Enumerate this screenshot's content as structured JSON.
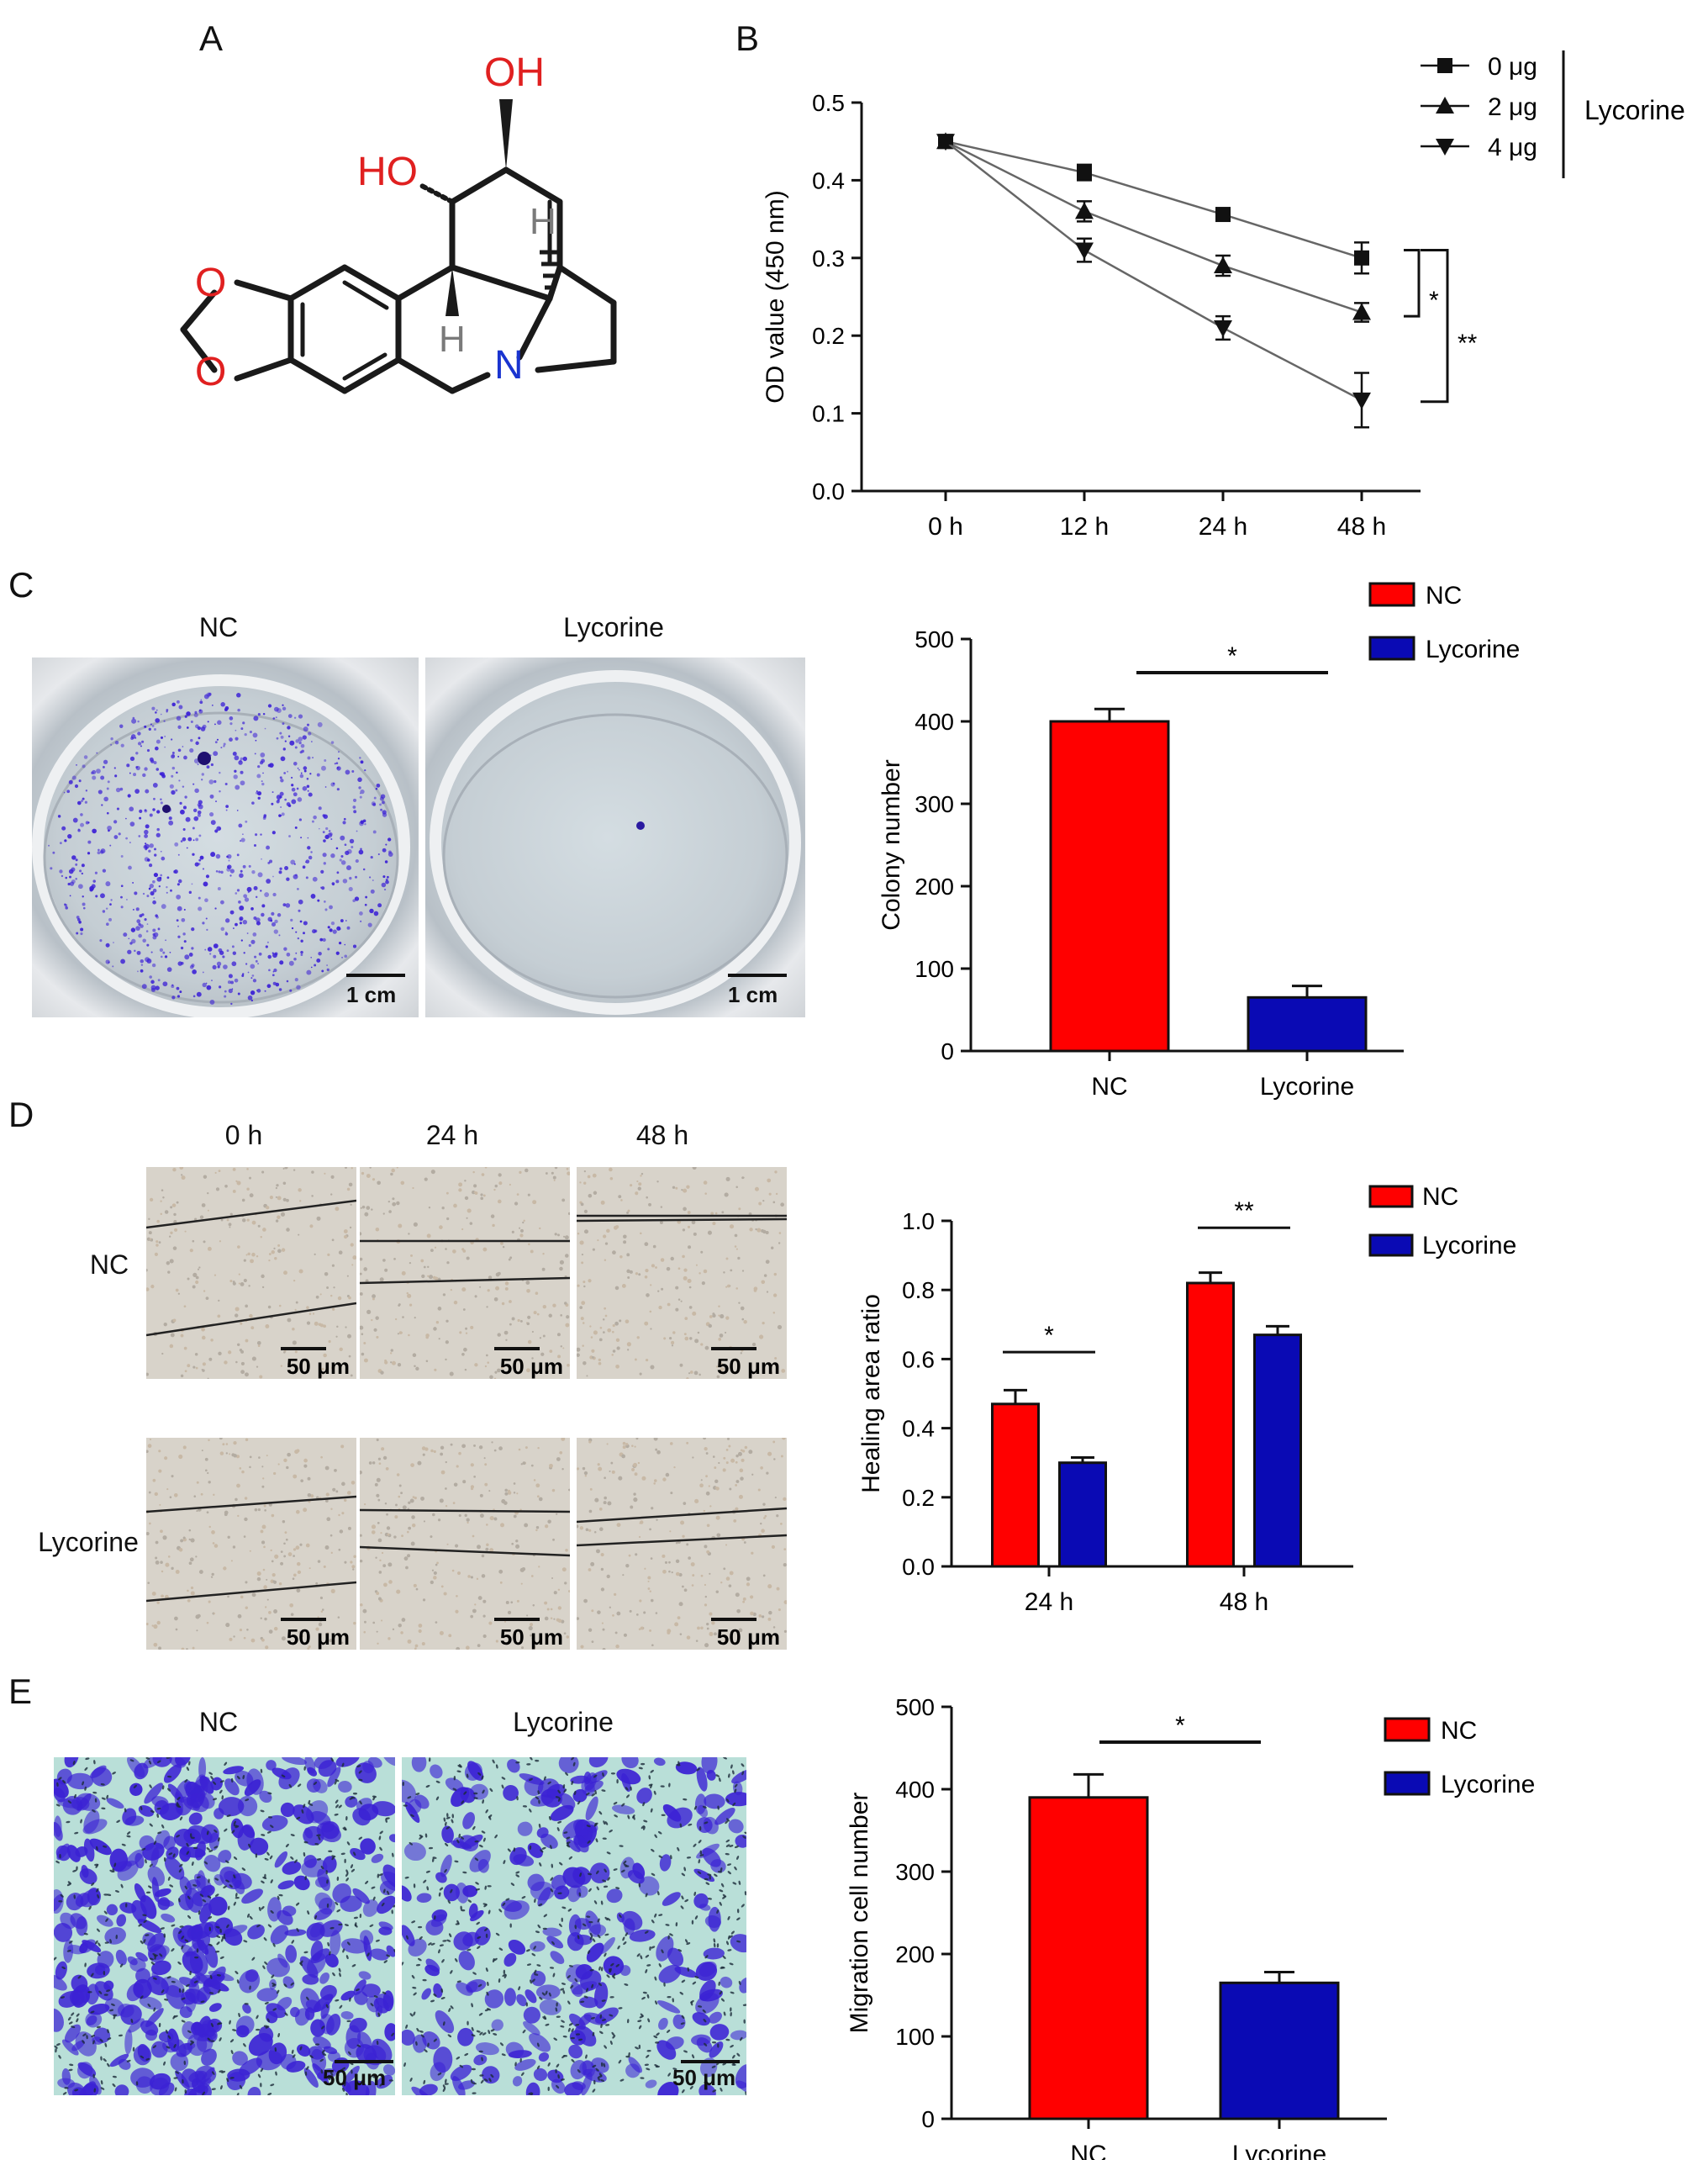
{
  "panels": {
    "A": {
      "letter": "A",
      "atoms": {
        "oh": "OH",
        "ho": "HO",
        "h_top": "H",
        "h_bottom": "H",
        "o_top": "O",
        "o_bottom": "O",
        "n": "N"
      },
      "colors": {
        "oxygen": "#e02020",
        "nitrogen": "#1a34d0",
        "hydrogen": "#7a7a7a",
        "bond": "#1a1a1a"
      }
    },
    "B": {
      "letter": "B",
      "legend_title": "Lycorine",
      "significance": {
        "upper": "*",
        "lower": "**"
      }
    },
    "C": {
      "letter": "C",
      "photo_labels": [
        "NC",
        "Lycorine"
      ],
      "scale_bars": [
        "1 cm",
        "1 cm"
      ],
      "significance": "*"
    },
    "D": {
      "letter": "D",
      "col_labels": [
        "0 h",
        "24 h",
        "48 h"
      ],
      "row_labels": [
        "NC",
        "Lycorine"
      ],
      "scale_bar": "50 μm",
      "significance": [
        "*",
        "**"
      ]
    },
    "E": {
      "letter": "E",
      "photo_labels": [
        "NC",
        "Lycorine"
      ],
      "scale_bars": [
        "50 μm",
        "50 μm"
      ],
      "significance": "*"
    }
  },
  "colors": {
    "nc": "#ff0000",
    "lycorine": "#0a0ab4",
    "line": "#555555",
    "stain": "#3a1fd6"
  },
  "chart_data": [
    {
      "id": "B",
      "type": "line",
      "x": [
        "0 h",
        "12 h",
        "24 h",
        "48 h"
      ],
      "ylabel": "OD value (450 nm)",
      "ylim": [
        0.0,
        0.5
      ],
      "yticks": [
        "0.0",
        "0.1",
        "0.2",
        "0.3",
        "0.4",
        "0.5"
      ],
      "series": [
        {
          "name": "0 μg",
          "marker": "square",
          "values": [
            0.45,
            0.41,
            0.356,
            0.3
          ],
          "errors": [
            0.003,
            0.01,
            0.006,
            0.02
          ]
        },
        {
          "name": "2 μg",
          "marker": "triangle-up",
          "values": [
            0.45,
            0.36,
            0.29,
            0.23
          ],
          "errors": [
            0.003,
            0.013,
            0.013,
            0.012
          ]
        },
        {
          "name": "4 μg",
          "marker": "triangle-down",
          "values": [
            0.45,
            0.31,
            0.21,
            0.117
          ],
          "errors": [
            0.003,
            0.015,
            0.015,
            0.035
          ]
        }
      ]
    },
    {
      "id": "C",
      "type": "bar",
      "categories": [
        "NC",
        "Lycorine"
      ],
      "ylabel": "Colony number",
      "ylim": [
        0,
        500
      ],
      "yticks": [
        "0",
        "100",
        "200",
        "300",
        "400",
        "500"
      ],
      "values": [
        400,
        65
      ],
      "errors": [
        15,
        14
      ],
      "legend": [
        "NC",
        "Lycorine"
      ]
    },
    {
      "id": "D",
      "type": "bar",
      "categories": [
        "24 h",
        "48 h"
      ],
      "ylabel": "Healing area ratio",
      "ylim": [
        0.0,
        1.0
      ],
      "yticks": [
        "0.0",
        "0.2",
        "0.4",
        "0.6",
        "0.8",
        "1.0"
      ],
      "series": [
        {
          "name": "NC",
          "values": [
            0.47,
            0.82
          ],
          "errors": [
            0.04,
            0.03
          ]
        },
        {
          "name": "Lycorine",
          "values": [
            0.3,
            0.67
          ],
          "errors": [
            0.015,
            0.025
          ]
        }
      ]
    },
    {
      "id": "E",
      "type": "bar",
      "categories": [
        "NC",
        "Lycorine"
      ],
      "ylabel": "Migration cell number",
      "ylim": [
        0,
        500
      ],
      "yticks": [
        "0",
        "100",
        "200",
        "300",
        "400",
        "500"
      ],
      "values": [
        390,
        165
      ],
      "errors": [
        28,
        13
      ],
      "legend": [
        "NC",
        "Lycorine"
      ]
    }
  ]
}
